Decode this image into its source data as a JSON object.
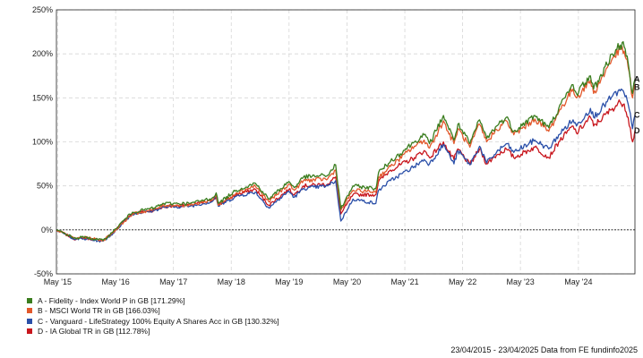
{
  "chart_data": {
    "type": "line",
    "xlim": [
      "2015-04-23",
      "2025-04-23"
    ],
    "ylim": [
      -50,
      250
    ],
    "y_ticks": [
      -50,
      0,
      50,
      100,
      150,
      200,
      250
    ],
    "y_tick_labels": [
      "-50%",
      "0%",
      "50%",
      "100%",
      "150%",
      "200%",
      "250%"
    ],
    "x_ticks": [
      "2015-05-01",
      "2016-05-01",
      "2017-05-01",
      "2018-05-01",
      "2019-05-01",
      "2020-05-01",
      "2021-05-01",
      "2022-05-01",
      "2023-05-01",
      "2024-05-01"
    ],
    "x_tick_labels": [
      "May '15",
      "May '16",
      "May '17",
      "May '18",
      "May '19",
      "May '20",
      "May '21",
      "May '22",
      "May '23",
      "May '24"
    ],
    "grid": true,
    "legend_position": "bottom-left",
    "series": [
      {
        "key": "A",
        "name": "A - Fidelity - Index World P in GB [171.29%]",
        "color": "#3a7d1e",
        "points": [
          [
            "2015-04-23",
            0
          ],
          [
            "2015-08-25",
            -10
          ],
          [
            "2015-09-30",
            -8
          ],
          [
            "2016-02-11",
            -12
          ],
          [
            "2016-04-15",
            -2
          ],
          [
            "2016-06-27",
            12
          ],
          [
            "2016-08-15",
            20
          ],
          [
            "2016-12-30",
            25
          ],
          [
            "2017-03-01",
            30
          ],
          [
            "2017-05-01",
            30
          ],
          [
            "2017-08-15",
            30
          ],
          [
            "2017-12-30",
            36
          ],
          [
            "2018-01-26",
            42
          ],
          [
            "2018-02-08",
            30
          ],
          [
            "2018-06-01",
            45
          ],
          [
            "2018-09-30",
            53
          ],
          [
            "2018-12-24",
            35
          ],
          [
            "2019-04-30",
            55
          ],
          [
            "2019-06-03",
            48
          ],
          [
            "2019-07-31",
            60
          ],
          [
            "2019-12-31",
            62
          ],
          [
            "2020-02-19",
            74
          ],
          [
            "2020-03-23",
            24
          ],
          [
            "2020-06-08",
            50
          ],
          [
            "2020-10-30",
            47
          ],
          [
            "2020-11-16",
            65
          ],
          [
            "2021-01-31",
            78
          ],
          [
            "2021-06-30",
            100
          ],
          [
            "2021-08-31",
            108
          ],
          [
            "2021-10-04",
            98
          ],
          [
            "2021-12-31",
            130
          ],
          [
            "2022-01-28",
            118
          ],
          [
            "2022-03-07",
            102
          ],
          [
            "2022-04-01",
            120
          ],
          [
            "2022-06-16",
            98
          ],
          [
            "2022-08-16",
            125
          ],
          [
            "2022-09-30",
            104
          ],
          [
            "2022-12-01",
            118
          ],
          [
            "2023-02-01",
            128
          ],
          [
            "2023-03-20",
            112
          ],
          [
            "2023-07-31",
            130
          ],
          [
            "2023-10-27",
            116
          ],
          [
            "2023-12-29",
            138
          ],
          [
            "2024-03-28",
            165
          ],
          [
            "2024-04-19",
            155
          ],
          [
            "2024-07-16",
            175
          ],
          [
            "2024-08-05",
            160
          ],
          [
            "2024-12-02",
            200
          ],
          [
            "2025-01-20",
            210
          ],
          [
            "2025-02-14",
            208
          ],
          [
            "2025-03-11",
            190
          ],
          [
            "2025-04-08",
            155
          ],
          [
            "2025-04-23",
            171.29
          ]
        ]
      },
      {
        "key": "B",
        "name": "B - MSCI World TR in GB [166.03%]",
        "color": "#e2582b",
        "points": [
          [
            "2015-04-23",
            0
          ],
          [
            "2015-08-25",
            -10
          ],
          [
            "2015-09-30",
            -8
          ],
          [
            "2016-02-11",
            -12
          ],
          [
            "2016-04-15",
            -3
          ],
          [
            "2016-06-27",
            10
          ],
          [
            "2016-08-15",
            18
          ],
          [
            "2016-12-30",
            23
          ],
          [
            "2017-03-01",
            28
          ],
          [
            "2017-05-01",
            28
          ],
          [
            "2017-08-15",
            28
          ],
          [
            "2017-12-30",
            34
          ],
          [
            "2018-01-26",
            40
          ],
          [
            "2018-02-08",
            28
          ],
          [
            "2018-06-01",
            42
          ],
          [
            "2018-09-30",
            50
          ],
          [
            "2018-12-24",
            32
          ],
          [
            "2019-04-30",
            52
          ],
          [
            "2019-06-03",
            45
          ],
          [
            "2019-07-31",
            56
          ],
          [
            "2019-12-31",
            58
          ],
          [
            "2020-02-19",
            68
          ],
          [
            "2020-03-23",
            22
          ],
          [
            "2020-06-08",
            45
          ],
          [
            "2020-10-30",
            43
          ],
          [
            "2020-11-16",
            60
          ],
          [
            "2021-01-31",
            72
          ],
          [
            "2021-06-30",
            95
          ],
          [
            "2021-08-31",
            102
          ],
          [
            "2021-10-04",
            93
          ],
          [
            "2021-12-31",
            124
          ],
          [
            "2022-01-28",
            112
          ],
          [
            "2022-03-07",
            98
          ],
          [
            "2022-04-01",
            115
          ],
          [
            "2022-06-16",
            94
          ],
          [
            "2022-08-16",
            120
          ],
          [
            "2022-09-30",
            100
          ],
          [
            "2022-12-01",
            114
          ],
          [
            "2023-02-01",
            124
          ],
          [
            "2023-03-20",
            108
          ],
          [
            "2023-07-31",
            126
          ],
          [
            "2023-10-27",
            112
          ],
          [
            "2023-12-29",
            134
          ],
          [
            "2024-03-28",
            160
          ],
          [
            "2024-04-19",
            150
          ],
          [
            "2024-07-16",
            170
          ],
          [
            "2024-08-05",
            155
          ],
          [
            "2024-12-02",
            195
          ],
          [
            "2025-01-20",
            205
          ],
          [
            "2025-02-14",
            203
          ],
          [
            "2025-03-11",
            185
          ],
          [
            "2025-04-08",
            150
          ],
          [
            "2025-04-23",
            166.03
          ]
        ]
      },
      {
        "key": "C",
        "name": "C - Vanguard - LifeStrategy 100% Equity A Shares Acc in GB [130.32%]",
        "color": "#2a4fa8",
        "points": [
          [
            "2015-04-23",
            0
          ],
          [
            "2015-08-25",
            -11
          ],
          [
            "2015-09-30",
            -10
          ],
          [
            "2016-02-11",
            -13
          ],
          [
            "2016-04-15",
            -4
          ],
          [
            "2016-06-27",
            10
          ],
          [
            "2016-08-15",
            18
          ],
          [
            "2016-12-30",
            22
          ],
          [
            "2017-03-01",
            26
          ],
          [
            "2017-05-01",
            26
          ],
          [
            "2017-08-15",
            27
          ],
          [
            "2017-12-30",
            32
          ],
          [
            "2018-01-26",
            38
          ],
          [
            "2018-02-08",
            27
          ],
          [
            "2018-06-01",
            38
          ],
          [
            "2018-09-30",
            43
          ],
          [
            "2018-12-24",
            25
          ],
          [
            "2019-04-30",
            44
          ],
          [
            "2019-06-03",
            37
          ],
          [
            "2019-07-31",
            47
          ],
          [
            "2019-12-31",
            50
          ],
          [
            "2020-02-19",
            56
          ],
          [
            "2020-03-23",
            10
          ],
          [
            "2020-06-08",
            35
          ],
          [
            "2020-10-30",
            30
          ],
          [
            "2020-11-16",
            45
          ],
          [
            "2021-01-31",
            56
          ],
          [
            "2021-06-30",
            72
          ],
          [
            "2021-08-31",
            80
          ],
          [
            "2021-10-04",
            75
          ],
          [
            "2021-12-31",
            97
          ],
          [
            "2022-01-28",
            88
          ],
          [
            "2022-03-07",
            75
          ],
          [
            "2022-04-01",
            90
          ],
          [
            "2022-06-16",
            74
          ],
          [
            "2022-08-16",
            95
          ],
          [
            "2022-09-30",
            76
          ],
          [
            "2022-12-01",
            88
          ],
          [
            "2023-02-01",
            98
          ],
          [
            "2023-03-20",
            88
          ],
          [
            "2023-07-31",
            102
          ],
          [
            "2023-10-27",
            92
          ],
          [
            "2023-12-29",
            108
          ],
          [
            "2024-03-28",
            125
          ],
          [
            "2024-04-19",
            118
          ],
          [
            "2024-07-16",
            138
          ],
          [
            "2024-08-05",
            128
          ],
          [
            "2024-12-02",
            152
          ],
          [
            "2025-01-20",
            158
          ],
          [
            "2025-02-14",
            155
          ],
          [
            "2025-03-11",
            143
          ],
          [
            "2025-04-08",
            115
          ],
          [
            "2025-04-23",
            130.32
          ]
        ]
      },
      {
        "key": "D",
        "name": "D - IA Global TR in GB [112.78%]",
        "color": "#c8161d",
        "points": [
          [
            "2015-04-23",
            0
          ],
          [
            "2015-08-25",
            -11
          ],
          [
            "2015-09-30",
            -9
          ],
          [
            "2016-02-11",
            -12
          ],
          [
            "2016-04-15",
            -3
          ],
          [
            "2016-06-27",
            11
          ],
          [
            "2016-08-15",
            19
          ],
          [
            "2016-12-30",
            22
          ],
          [
            "2017-03-01",
            26
          ],
          [
            "2017-05-01",
            27
          ],
          [
            "2017-08-15",
            28
          ],
          [
            "2017-12-30",
            33
          ],
          [
            "2018-01-26",
            38
          ],
          [
            "2018-02-08",
            28
          ],
          [
            "2018-06-01",
            40
          ],
          [
            "2018-09-30",
            46
          ],
          [
            "2018-12-24",
            28
          ],
          [
            "2019-04-30",
            46
          ],
          [
            "2019-06-03",
            40
          ],
          [
            "2019-07-31",
            50
          ],
          [
            "2019-12-31",
            52
          ],
          [
            "2020-02-19",
            60
          ],
          [
            "2020-03-23",
            18
          ],
          [
            "2020-06-08",
            40
          ],
          [
            "2020-10-30",
            40
          ],
          [
            "2020-11-16",
            55
          ],
          [
            "2021-01-31",
            68
          ],
          [
            "2021-06-30",
            82
          ],
          [
            "2021-08-31",
            90
          ],
          [
            "2021-10-04",
            82
          ],
          [
            "2021-12-31",
            100
          ],
          [
            "2022-01-28",
            90
          ],
          [
            "2022-03-07",
            80
          ],
          [
            "2022-04-01",
            92
          ],
          [
            "2022-06-16",
            74
          ],
          [
            "2022-08-16",
            92
          ],
          [
            "2022-09-30",
            75
          ],
          [
            "2022-12-01",
            85
          ],
          [
            "2023-02-01",
            92
          ],
          [
            "2023-03-20",
            82
          ],
          [
            "2023-07-31",
            94
          ],
          [
            "2023-10-27",
            82
          ],
          [
            "2023-12-29",
            100
          ],
          [
            "2024-03-28",
            118
          ],
          [
            "2024-04-19",
            110
          ],
          [
            "2024-07-16",
            128
          ],
          [
            "2024-08-05",
            118
          ],
          [
            "2024-12-02",
            138
          ],
          [
            "2025-01-20",
            145
          ],
          [
            "2025-02-14",
            143
          ],
          [
            "2025-03-11",
            128
          ],
          [
            "2025-04-08",
            100
          ],
          [
            "2025-04-23",
            112.78
          ]
        ]
      }
    ]
  },
  "footer": {
    "text": "23/04/2015 - 23/04/2025 Data from FE fundinfo2025"
  }
}
